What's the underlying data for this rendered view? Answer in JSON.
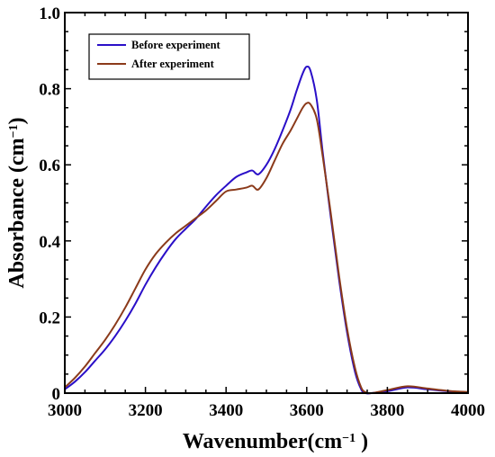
{
  "chart_data": {
    "type": "line",
    "title": "",
    "xlabel": "Wavenumber(cm",
    "xlabel_sup": "−1",
    "xlabel_suffix": " )",
    "ylabel": "Absorbance (cm",
    "ylabel_sup": "−1",
    "ylabel_suffix": ")",
    "xlim": [
      3000,
      4000
    ],
    "ylim": [
      0,
      1.0
    ],
    "xticks": [
      3000,
      3200,
      3400,
      3600,
      3800,
      4000
    ],
    "xtick_labels": [
      "3000",
      "3200",
      "3400",
      "3600",
      "3800",
      "4000"
    ],
    "yticks": [
      0,
      0.2,
      0.4,
      0.6,
      0.8,
      1.0
    ],
    "ytick_labels": [
      "0",
      "0.2",
      "0.4",
      "0.6",
      "0.8",
      "1.0"
    ],
    "grid": false,
    "legend_position": "top-left",
    "series": [
      {
        "name": "Before experiment",
        "color": "#2a0fc8",
        "x": [
          3000,
          3025,
          3050,
          3075,
          3100,
          3125,
          3150,
          3175,
          3200,
          3225,
          3250,
          3275,
          3300,
          3325,
          3350,
          3375,
          3400,
          3425,
          3450,
          3465,
          3480,
          3500,
          3520,
          3540,
          3560,
          3575,
          3590,
          3600,
          3610,
          3625,
          3640,
          3660,
          3680,
          3700,
          3720,
          3735,
          3745,
          3760,
          3800,
          3850,
          3900,
          3950,
          4000
        ],
        "y": [
          0.01,
          0.03,
          0.055,
          0.085,
          0.115,
          0.15,
          0.19,
          0.235,
          0.285,
          0.33,
          0.37,
          0.405,
          0.432,
          0.458,
          0.49,
          0.52,
          0.545,
          0.568,
          0.58,
          0.585,
          0.575,
          0.6,
          0.64,
          0.69,
          0.745,
          0.795,
          0.84,
          0.858,
          0.845,
          0.77,
          0.63,
          0.46,
          0.3,
          0.16,
          0.055,
          0.01,
          0.0,
          0.0,
          0.005,
          0.015,
          0.01,
          0.005,
          0.002
        ]
      },
      {
        "name": "After experiment",
        "color": "#8b3a1a",
        "x": [
          3000,
          3025,
          3050,
          3075,
          3100,
          3125,
          3150,
          3175,
          3200,
          3225,
          3250,
          3275,
          3300,
          3325,
          3350,
          3375,
          3400,
          3425,
          3450,
          3465,
          3480,
          3500,
          3520,
          3540,
          3560,
          3575,
          3590,
          3600,
          3610,
          3625,
          3640,
          3660,
          3680,
          3700,
          3720,
          3735,
          3745,
          3760,
          3800,
          3850,
          3900,
          3950,
          4000
        ],
        "y": [
          0.015,
          0.04,
          0.07,
          0.105,
          0.14,
          0.18,
          0.225,
          0.275,
          0.325,
          0.365,
          0.395,
          0.42,
          0.44,
          0.46,
          0.48,
          0.505,
          0.53,
          0.535,
          0.54,
          0.545,
          0.535,
          0.565,
          0.61,
          0.655,
          0.69,
          0.72,
          0.75,
          0.762,
          0.758,
          0.72,
          0.62,
          0.47,
          0.31,
          0.17,
          0.065,
          0.015,
          0.003,
          0.0,
          0.008,
          0.018,
          0.012,
          0.006,
          0.003
        ]
      }
    ]
  }
}
